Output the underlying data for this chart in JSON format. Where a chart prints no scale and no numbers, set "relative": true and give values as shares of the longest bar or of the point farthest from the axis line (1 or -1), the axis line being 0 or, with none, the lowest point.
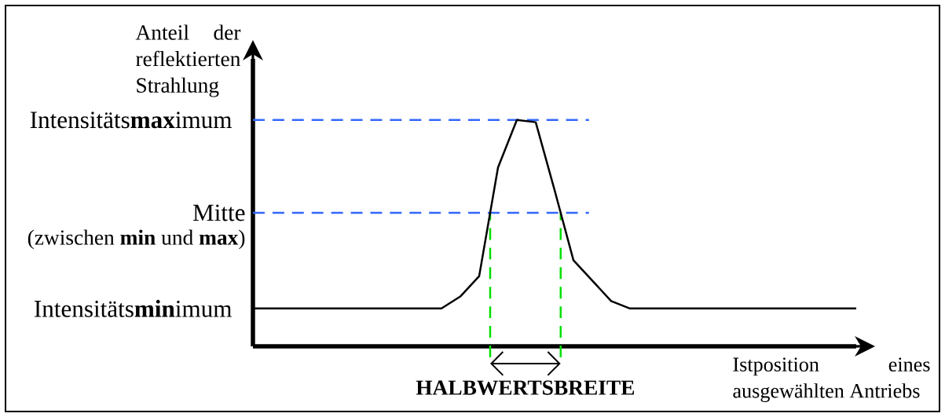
{
  "chart_data": {
    "type": "line",
    "relative": true,
    "xlabel": "Istposition eines ausgewählten Antriebs",
    "ylabel": "Anteil der reflektierten Strahlung",
    "categories": [
      null,
      null,
      null,
      null,
      null,
      null,
      null,
      null,
      null,
      null,
      null,
      null,
      null,
      null,
      null,
      null,
      null,
      null,
      null,
      null,
      null,
      null,
      null,
      null,
      null,
      null,
      null,
      null,
      null,
      null,
      null,
      null,
      null
    ],
    "values": [
      0.167,
      0.167,
      0.167,
      0.167,
      0.167,
      0.167,
      0.167,
      0.167,
      0.167,
      0.167,
      0.167,
      0.22,
      0.31,
      0.79,
      1,
      0.99,
      0.69,
      0.38,
      0.29,
      0.2,
      0.167,
      0.167,
      0.167,
      0.167,
      0.167,
      0.167,
      0.167,
      0.167,
      0.167,
      0.167,
      0.167,
      0.167,
      0.167
    ],
    "color": "#000000",
    "marker": "none",
    "line_style": "solid",
    "ref_lines": [
      {
        "axis": "y",
        "value": 1,
        "label": "Intensitäts**max**imum",
        "color": "#3366ff",
        "line_style": "dashed"
      },
      {
        "axis": "y",
        "value": 0.59,
        "label": "Mitte",
        "color": "#3366ff",
        "line_style": "dashed"
      }
    ],
    "annotations": [
      "(zwischen **min** und **max**)",
      "Intensitäts**min**imum",
      "HALBWERTSBREITE"
    ]
  }
}
